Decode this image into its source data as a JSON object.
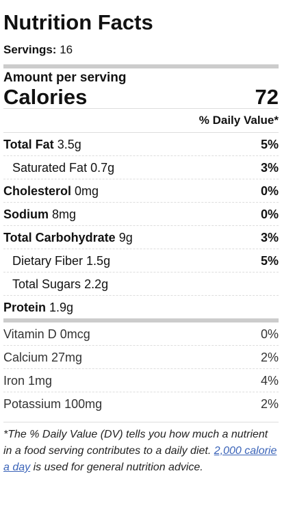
{
  "title": "Nutrition Facts",
  "servings": {
    "label": "Servings:",
    "value": "16"
  },
  "amount_per_serving": "Amount per serving",
  "calories": {
    "label": "Calories",
    "value": "72"
  },
  "daily_value_header": "% Daily Value*",
  "nutrients": [
    {
      "name": "Total Fat",
      "amount": "3.5g",
      "dv": "5%",
      "bold": true,
      "indent": false
    },
    {
      "name": "Saturated Fat",
      "amount": "0.7g",
      "dv": "3%",
      "bold": false,
      "indent": true
    },
    {
      "name": "Cholesterol",
      "amount": "0mg",
      "dv": "0%",
      "bold": true,
      "indent": false
    },
    {
      "name": "Sodium",
      "amount": "8mg",
      "dv": "0%",
      "bold": true,
      "indent": false
    },
    {
      "name": "Total Carbohydrate",
      "amount": "9g",
      "dv": "3%",
      "bold": true,
      "indent": false
    },
    {
      "name": "Dietary Fiber",
      "amount": "1.5g",
      "dv": "5%",
      "bold": false,
      "indent": true
    },
    {
      "name": "Total Sugars",
      "amount": "2.2g",
      "bold": false,
      "indent": true
    },
    {
      "name": "Protein",
      "amount": "1.9g",
      "bold": true,
      "indent": false
    }
  ],
  "vitamins": [
    {
      "name": "Vitamin D",
      "amount": "0mcg",
      "dv": "0%"
    },
    {
      "name": "Calcium",
      "amount": "27mg",
      "dv": "2%"
    },
    {
      "name": "Iron",
      "amount": "1mg",
      "dv": "4%"
    },
    {
      "name": "Potassium",
      "amount": "100mg",
      "dv": "2%"
    }
  ],
  "footnote": {
    "before": "*The % Daily Value (DV) tells you how much a nutrient in a food serving contributes to a daily diet.",
    "link": "2,000 calorie a day",
    "after": "is used for general nutrition advice."
  }
}
